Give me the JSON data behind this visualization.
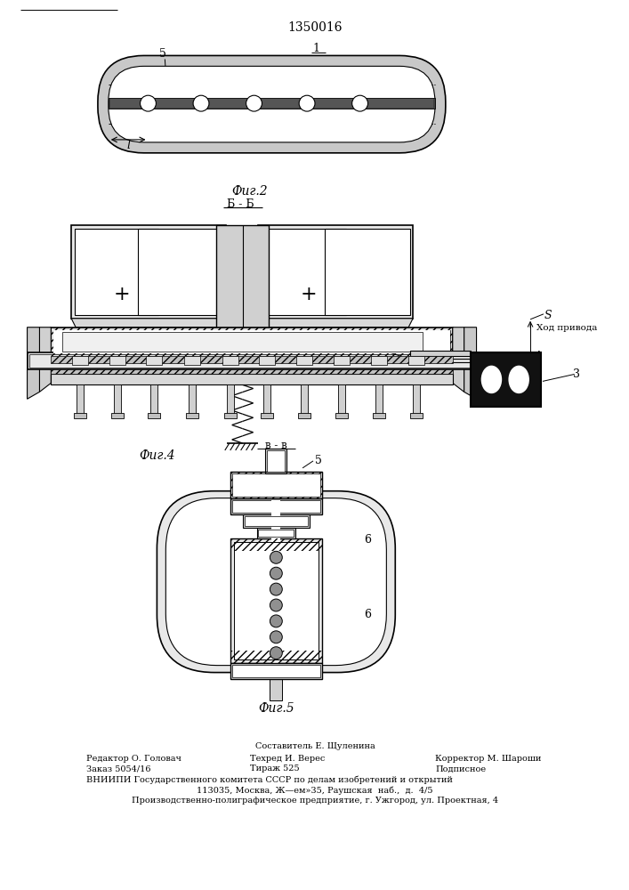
{
  "patent_number": "1350016",
  "fig2_label": "Фиг.2",
  "fig2_sublabel": "Б - Б",
  "fig4_label": "Фиг.4",
  "fig5_label": "Фиг.5",
  "fig5_bb_label": "в - в",
  "footer_left1": "Редактор О. Головач",
  "footer_center0": "Составитель Е. Щуленина",
  "footer_center1": "Техред И. Верес",
  "footer_right1": "Корректор М. Шароши",
  "footer_left2": "Заказ 5054/16",
  "footer_center2": "Тираж 525",
  "footer_right2": "Подписное",
  "footer_line3": "ВНИИПИ Государственного комитета СССР по делам изобретений и открытий",
  "footer_line4": "113035, Москва, Ж—ем»35, Раушская  наб.,  д.  4/5",
  "footer_line5": "Производственно-полиграфическое предприятие, г. Ужгород, ул. Проектная, 4",
  "bg_color": "#ffffff",
  "lc": "#000000"
}
